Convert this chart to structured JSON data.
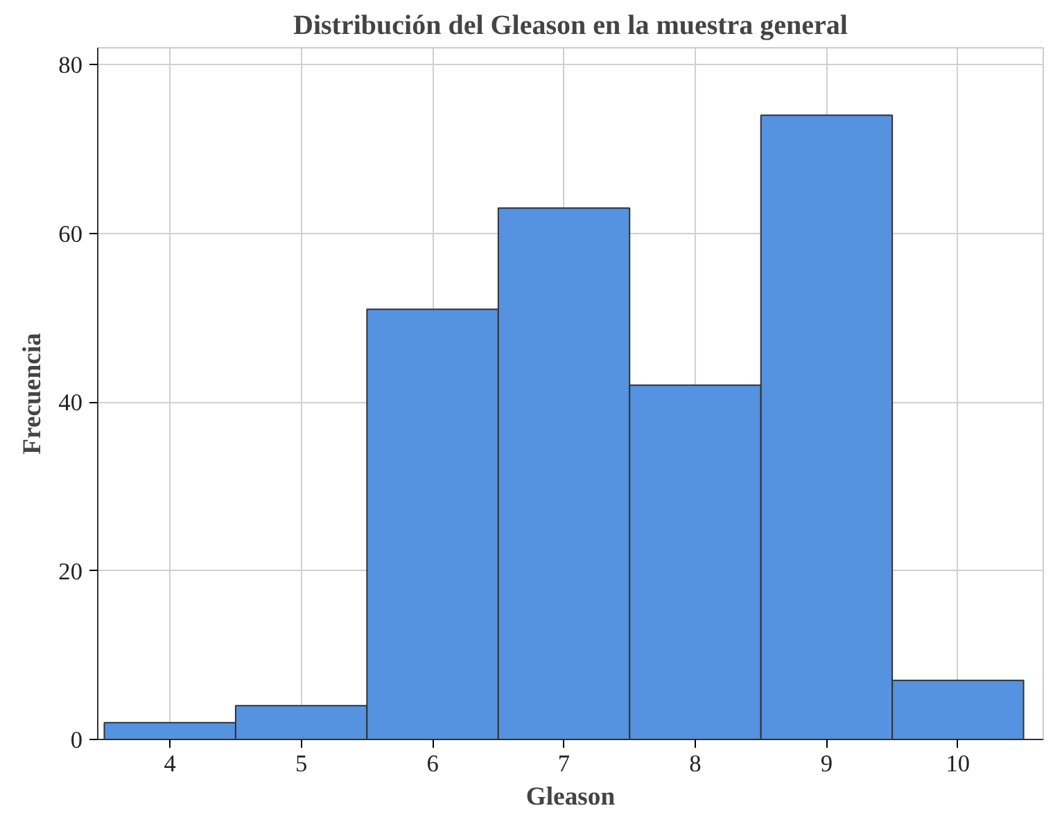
{
  "chart_data": {
    "type": "histogram",
    "title": "Distribución del Gleason en la muestra general",
    "xlabel": "Gleason",
    "ylabel": "Frecuencia",
    "bins": [
      3.5,
      4.5,
      5.5,
      6.5,
      7.5,
      8.5,
      9.5,
      10.5
    ],
    "values": [
      2,
      4,
      51,
      63,
      42,
      74,
      7
    ],
    "color": "#5592e0",
    "xlim": [
      3.45,
      10.65
    ],
    "xticks": [
      4,
      5,
      6,
      7,
      8,
      9,
      10
    ],
    "ylim": [
      0,
      82
    ],
    "yticks": [
      0,
      20,
      40,
      60,
      80
    ],
    "grid": true
  }
}
